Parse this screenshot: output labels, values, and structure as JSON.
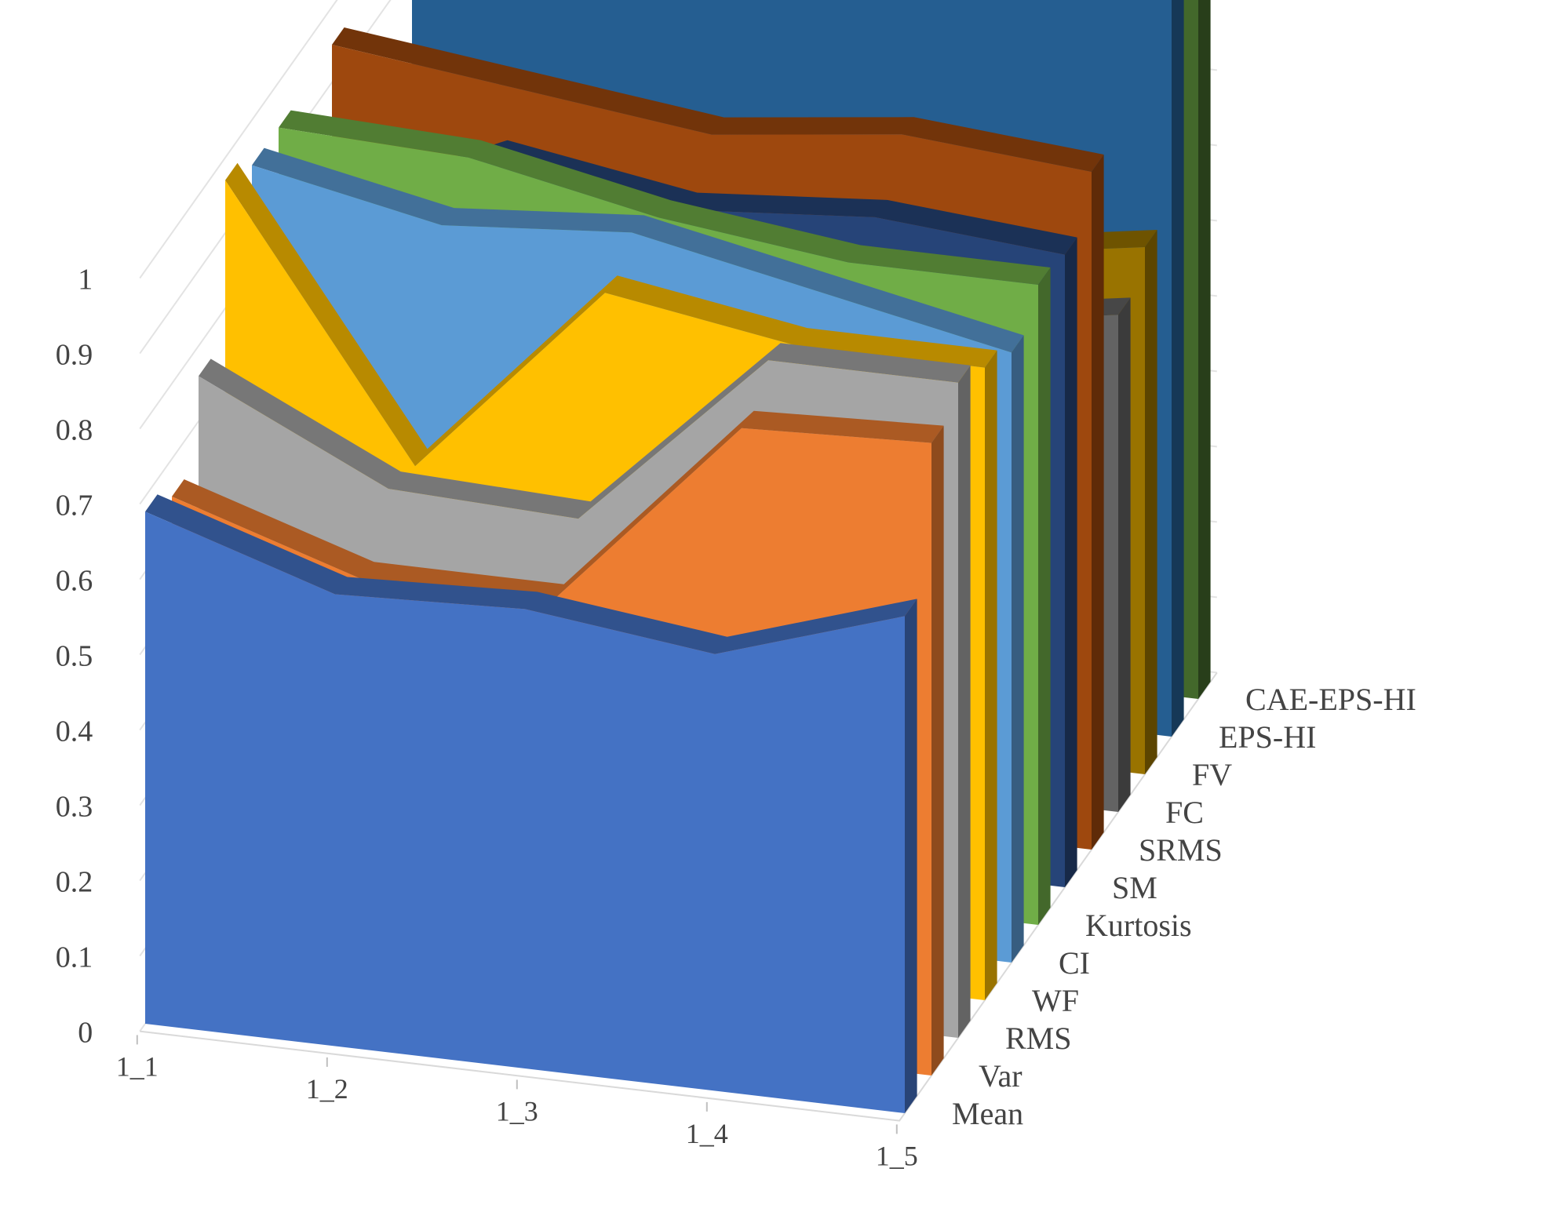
{
  "chart_data": {
    "type": "area",
    "variant": "3d",
    "title": "",
    "xlabel": "",
    "ylabel": "",
    "ylim": [
      0,
      1
    ],
    "yticks": [
      "0",
      "0.1",
      "0.2",
      "0.3",
      "0.4",
      "0.5",
      "0.6",
      "0.7",
      "0.8",
      "0.9",
      "1"
    ],
    "categories": [
      "1_1",
      "1_2",
      "1_3",
      "1_4",
      "1_5"
    ],
    "grid": true,
    "series": [
      {
        "name": "Mean",
        "color": "#4472C4",
        "values": [
          0.68,
          0.6,
          0.61,
          0.58,
          0.66
        ]
      },
      {
        "name": "Var",
        "color": "#ED7D31",
        "values": [
          0.65,
          0.57,
          0.57,
          0.83,
          0.84
        ]
      },
      {
        "name": "RMS",
        "color": "#A5A5A5",
        "values": [
          0.76,
          0.64,
          0.63,
          0.87,
          0.87
        ]
      },
      {
        "name": "WF",
        "color": "#FFC000",
        "values": [
          0.97,
          0.62,
          0.88,
          0.84,
          0.84
        ]
      },
      {
        "name": "CI",
        "color": "#5B9BD5",
        "values": [
          0.94,
          0.89,
          0.91,
          0.86,
          0.81
        ]
      },
      {
        "name": "Kurtosis",
        "color": "#70AD47",
        "values": [
          0.94,
          0.93,
          0.88,
          0.85,
          0.85
        ]
      },
      {
        "name": "SM",
        "color": "#264478",
        "values": [
          0.77,
          0.88,
          0.84,
          0.86,
          0.84
        ]
      },
      {
        "name": "SRMS",
        "color": "#9E480E",
        "values": [
          0.95,
          0.92,
          0.89,
          0.92,
          0.9
        ]
      },
      {
        "name": "FC",
        "color": "#636363",
        "values": [
          0.56,
          0.57,
          0.6,
          0.62,
          0.66
        ]
      },
      {
        "name": "FV",
        "color": "#997300",
        "values": [
          0.58,
          0.6,
          0.63,
          0.66,
          0.7
        ]
      },
      {
        "name": "EPS-HI",
        "color": "#255E91",
        "values": [
          0.87,
          0.91,
          0.98,
          0.96,
          0.98
        ]
      },
      {
        "name": "CAE-EPS-HI",
        "color": "#43682B",
        "values": [
          0.98,
          0.92,
          1.0,
          1.0,
          1.0
        ]
      }
    ]
  }
}
